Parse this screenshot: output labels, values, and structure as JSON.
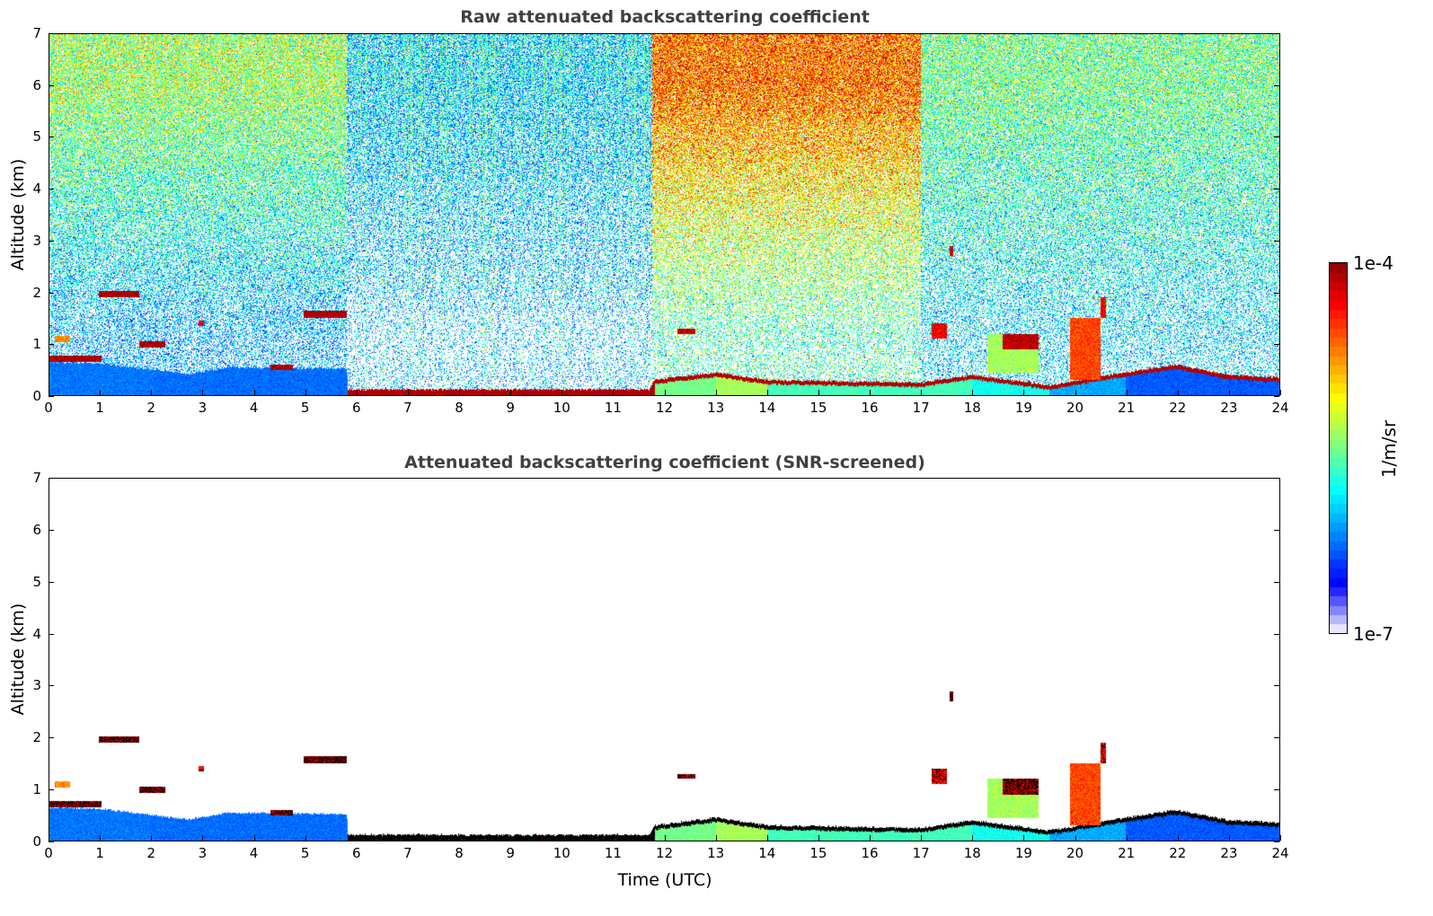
{
  "chart_data": [
    {
      "type": "heatmap",
      "title": "Raw attenuated backscattering coefficient",
      "xlabel": "",
      "ylabel": "Altitude (km)",
      "xlim": [
        0,
        24
      ],
      "ylim": [
        0,
        7
      ],
      "mode": "raw"
    },
    {
      "type": "heatmap",
      "title": "Attenuated backscattering coefficient (SNR-screened)",
      "xlabel": "Time (UTC)",
      "ylabel": "Altitude (km)",
      "xlim": [
        0,
        24
      ],
      "ylim": [
        0,
        7
      ],
      "mode": "screened"
    }
  ],
  "x_ticks": [
    "0",
    "1",
    "2",
    "3",
    "4",
    "5",
    "6",
    "7",
    "8",
    "9",
    "10",
    "11",
    "12",
    "13",
    "14",
    "15",
    "16",
    "17",
    "18",
    "19",
    "20",
    "21",
    "22",
    "23",
    "24"
  ],
  "y_ticks": [
    "0",
    "1",
    "2",
    "3",
    "4",
    "5",
    "6",
    "7"
  ],
  "colorbar": {
    "label": "1/m/sr",
    "max_label": "1e-4",
    "min_label": "1e-7",
    "log_range": [
      -7,
      -4
    ]
  },
  "field": {
    "noise_regions": [
      {
        "t": [
          0,
          5.8
        ],
        "top": 0.55,
        "low": 0.3,
        "blank_low": 0.55,
        "blank_top": 0.15
      },
      {
        "t": [
          5.8,
          11.75
        ],
        "top": 0.33,
        "low": 0.3,
        "blank_low": 0.75,
        "blank_top": 0.3
      },
      {
        "t": [
          11.75,
          17
        ],
        "top": 0.78,
        "low": 0.45,
        "blank_low": 0.6,
        "blank_top": 0.1
      },
      {
        "t": [
          17,
          24
        ],
        "top": 0.5,
        "low": 0.35,
        "blank_low": 0.6,
        "blank_top": 0.2
      }
    ],
    "boundary_layer": [
      {
        "t": 0,
        "h": 0.65,
        "fill": 0.25,
        "top": 0.0
      },
      {
        "t": 1,
        "h": 0.62,
        "fill": 0.25,
        "top": 0.0
      },
      {
        "t": 2,
        "h": 0.5,
        "fill": 0.24,
        "top": 0.0
      },
      {
        "t": 2.7,
        "h": 0.42,
        "fill": 0.24,
        "top": 0.0
      },
      {
        "t": 3.5,
        "h": 0.55,
        "fill": 0.24,
        "top": 0.0
      },
      {
        "t": 5.8,
        "h": 0.52,
        "fill": 0.25,
        "top": 0.0
      },
      {
        "t": 5.81,
        "h": 0.12,
        "fill": 0.97,
        "top": 0.97
      },
      {
        "t": 11.7,
        "h": 0.12,
        "fill": 0.97,
        "top": 0.97
      },
      {
        "t": 11.8,
        "h": 0.3,
        "fill": 0.5,
        "top": 0.97
      },
      {
        "t": 13,
        "h": 0.45,
        "fill": 0.55,
        "top": 0.97
      },
      {
        "t": 14,
        "h": 0.3,
        "fill": 0.45,
        "top": 0.97
      },
      {
        "t": 17,
        "h": 0.25,
        "fill": 0.45,
        "top": 0.97
      },
      {
        "t": 18,
        "h": 0.4,
        "fill": 0.4,
        "top": 0.97
      },
      {
        "t": 19.5,
        "h": 0.2,
        "fill": 0.3,
        "top": 0.97
      },
      {
        "t": 21,
        "h": 0.45,
        "fill": 0.22,
        "top": 0.97
      },
      {
        "t": 22,
        "h": 0.6,
        "fill": 0.22,
        "top": 0.97
      },
      {
        "t": 23,
        "h": 0.4,
        "fill": 0.22,
        "top": 0.97
      },
      {
        "t": 24,
        "h": 0.35,
        "fill": 0.22,
        "top": 0.97
      }
    ],
    "layers": [
      [
        0,
        1.0,
        0.65,
        0.77,
        0.97
      ],
      [
        0.1,
        0.4,
        1.04,
        1.15,
        0.75
      ],
      [
        0.95,
        1.75,
        1.9,
        2.02,
        0.97
      ],
      [
        1.75,
        2.25,
        0.93,
        1.05,
        0.97
      ],
      [
        2.9,
        3.0,
        1.35,
        1.45,
        0.9
      ],
      [
        4.3,
        4.75,
        0.5,
        0.6,
        0.97
      ],
      [
        4.95,
        5.8,
        1.5,
        1.65,
        0.97
      ],
      [
        12.25,
        12.6,
        1.2,
        1.3,
        0.95
      ],
      [
        17.2,
        17.5,
        1.1,
        1.4,
        0.9
      ],
      [
        17.55,
        17.62,
        2.7,
        2.9,
        0.95
      ],
      [
        18.3,
        19.3,
        0.45,
        1.2,
        0.55
      ],
      [
        18.6,
        19.3,
        0.9,
        1.2,
        0.95
      ],
      [
        19.9,
        20.5,
        0.3,
        1.5,
        0.82
      ],
      [
        20.5,
        20.6,
        1.5,
        1.9,
        0.9
      ]
    ]
  }
}
